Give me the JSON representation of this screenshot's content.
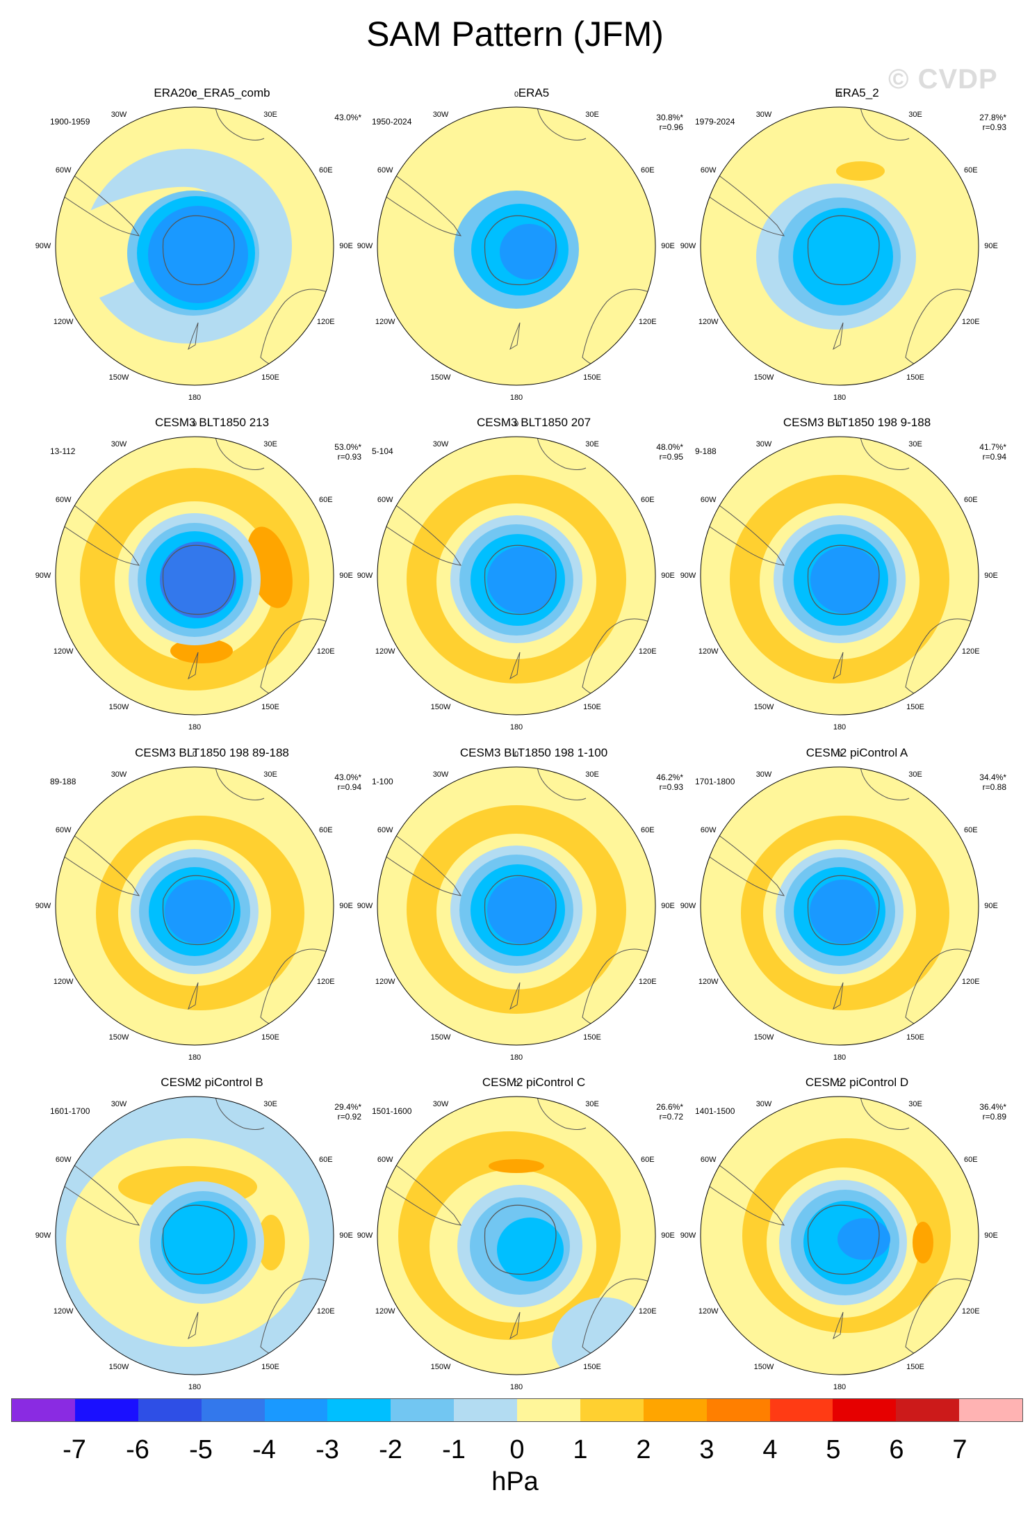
{
  "title": "SAM Pattern (JFM)",
  "watermark": "© CVDP",
  "lon_labels": [
    "0",
    "30E",
    "60E",
    "90E",
    "120E",
    "150E",
    "180",
    "150W",
    "120W",
    "90W",
    "60W",
    "30W"
  ],
  "colors": {
    "neg1": "#b3dcf2",
    "neg2": "#72c6f2",
    "neg3": "#00bfff",
    "neg4": "#1a99ff",
    "neg5": "#3378ec",
    "pos1": "#fff69a",
    "pos2": "#ffd030",
    "pos3": "#ffa500",
    "land": "#555555"
  },
  "panels": [
    {
      "title": "ERA20c_ERA5_comb",
      "period": "1900-1959",
      "pct": "43.0%*",
      "r": "",
      "style": "obs1"
    },
    {
      "title": "ERA5",
      "period": "1950-2024",
      "pct": "30.8%*",
      "r": "r=0.96",
      "style": "obs2"
    },
    {
      "title": "ERA5_2",
      "period": "1979-2024",
      "pct": "27.8%*",
      "r": "r=0.93",
      "style": "obs3"
    },
    {
      "title": "CESM3 BLT1850 213",
      "period": "13-112",
      "pct": "53.0%*",
      "r": "r=0.93",
      "style": "m1"
    },
    {
      "title": "CESM3 BLT1850 207",
      "period": "5-104",
      "pct": "48.0%*",
      "r": "r=0.95",
      "style": "m2"
    },
    {
      "title": "CESM3 BLT1850 198 9-188",
      "period": "9-188",
      "pct": "41.7%*",
      "r": "r=0.94",
      "style": "m2"
    },
    {
      "title": "CESM3 BLT1850 198 89-188",
      "period": "89-188",
      "pct": "43.0%*",
      "r": "r=0.94",
      "style": "m3"
    },
    {
      "title": "CESM3 BLT1850 198 1-100",
      "period": "1-100",
      "pct": "46.2%*",
      "r": "r=0.93",
      "style": "m2"
    },
    {
      "title": "CESM2 piControl A",
      "period": "1701-1800",
      "pct": "34.4%*",
      "r": "r=0.88",
      "style": "m3"
    },
    {
      "title": "CESM2 piControl B",
      "period": "1601-1700",
      "pct": "29.4%*",
      "r": "r=0.92",
      "style": "c1"
    },
    {
      "title": "CESM2 piControl C",
      "period": "1501-1600",
      "pct": "26.6%*",
      "r": "r=0.72",
      "style": "c2"
    },
    {
      "title": "CESM2 piControl D",
      "period": "1401-1500",
      "pct": "36.4%*",
      "r": "r=0.89",
      "style": "c3"
    }
  ],
  "colorbar": {
    "colors": [
      "#8a2be2",
      "#1a10ff",
      "#2e4fe6",
      "#3378ec",
      "#1a99ff",
      "#00bfff",
      "#72c6f2",
      "#b3dcf2",
      "#fff69a",
      "#ffd030",
      "#ffa500",
      "#ff7f00",
      "#ff3b14",
      "#e60000",
      "#cc1a1a",
      "#ffb3b3"
    ],
    "labels": [
      "-7",
      "-6",
      "-5",
      "-4",
      "-3",
      "-2",
      "-1",
      "0",
      "1",
      "2",
      "3",
      "4",
      "5",
      "6",
      "7"
    ],
    "unit": "hPa"
  }
}
